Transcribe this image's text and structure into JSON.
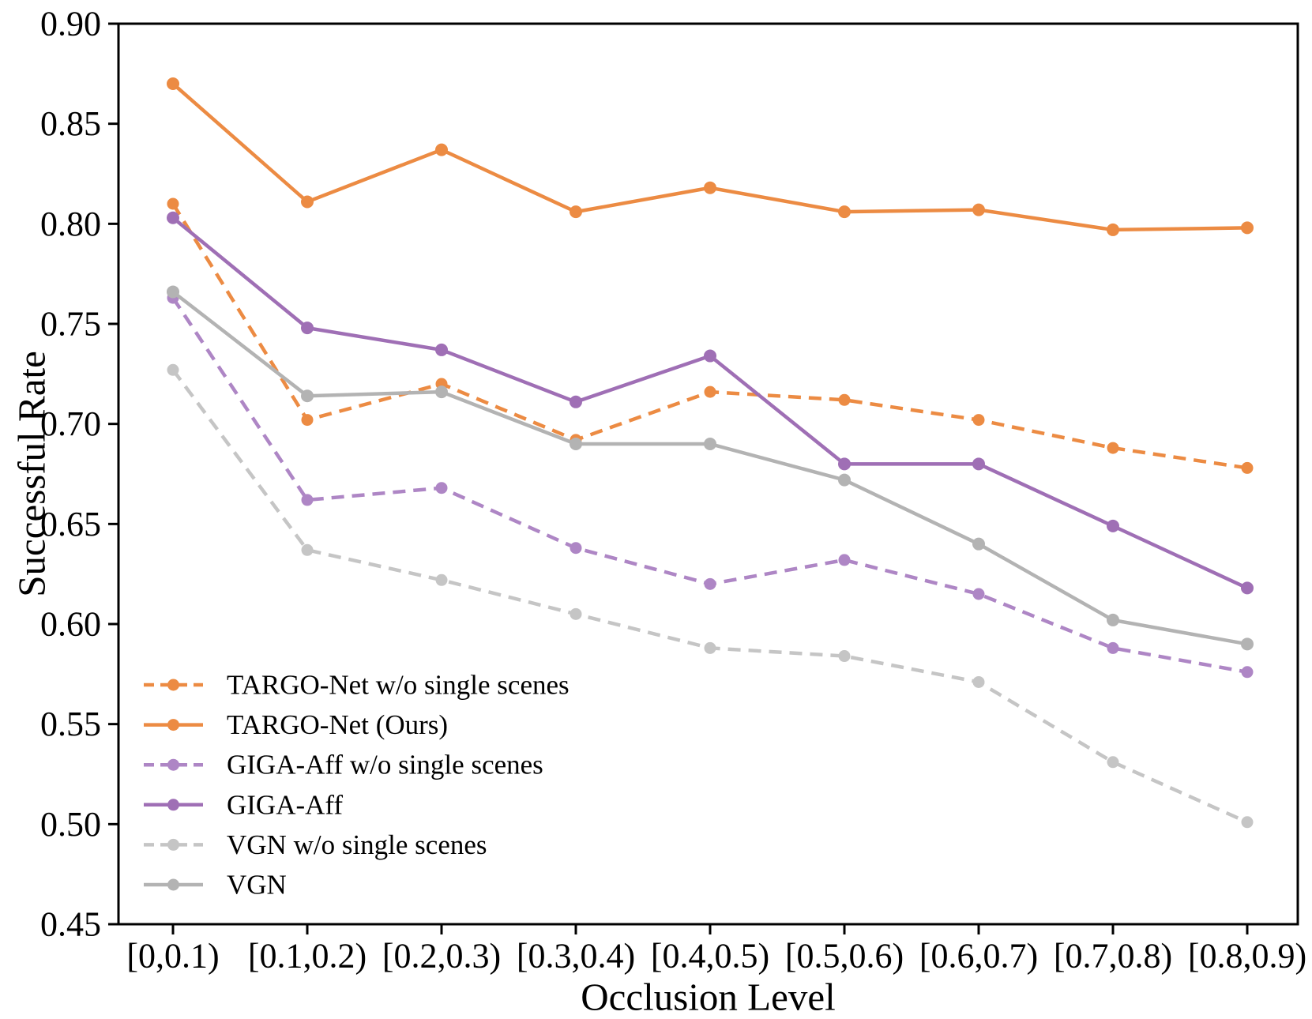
{
  "chart_data": {
    "type": "line",
    "title": "",
    "xlabel": "Occlusion Level",
    "ylabel": "Successful Rate",
    "categories": [
      "[0,0.1)",
      "[0.1,0.2)",
      "[0.2,0.3)",
      "[0.3,0.4)",
      "[0.4,0.5)",
      "[0.5,0.6)",
      "[0.6,0.7)",
      "[0.7,0.8)",
      "[0.8,0.9)"
    ],
    "ylim": [
      0.45,
      0.9
    ],
    "ytick_step": 0.05,
    "ytick_decimals": 2,
    "grid": false,
    "legend_position": "lower-left",
    "series": [
      {
        "name": "TARGO-Net w/o single scenes",
        "color": "#EC8B43",
        "style": "dashed",
        "marker": "circle",
        "values": [
          0.81,
          0.702,
          0.72,
          0.692,
          0.716,
          0.712,
          0.702,
          0.688,
          0.678
        ]
      },
      {
        "name": "TARGO-Net (Ours)",
        "color": "#EC8B43",
        "style": "solid",
        "marker": "circle",
        "values": [
          0.87,
          0.811,
          0.837,
          0.806,
          0.818,
          0.806,
          0.807,
          0.797,
          0.798
        ]
      },
      {
        "name": "GIGA-Aff w/o single scenes",
        "color": "#AE86C5",
        "style": "dashed",
        "marker": "circle",
        "values": [
          0.763,
          0.662,
          0.668,
          0.638,
          0.62,
          0.632,
          0.615,
          0.588,
          0.576
        ]
      },
      {
        "name": "GIGA-Aff",
        "color": "#9F6FB5",
        "style": "solid",
        "marker": "circle",
        "values": [
          0.803,
          0.748,
          0.737,
          0.711,
          0.734,
          0.68,
          0.68,
          0.649,
          0.618
        ]
      },
      {
        "name": "VGN w/o single scenes",
        "color": "#C5C5C5",
        "style": "dashed",
        "marker": "circle",
        "values": [
          0.727,
          0.637,
          0.622,
          0.605,
          0.588,
          0.584,
          0.571,
          0.531,
          0.501
        ]
      },
      {
        "name": "VGN",
        "color": "#B3B3B3",
        "style": "solid",
        "marker": "circle",
        "values": [
          0.766,
          0.714,
          0.716,
          0.69,
          0.69,
          0.672,
          0.64,
          0.602,
          0.59
        ]
      }
    ]
  }
}
